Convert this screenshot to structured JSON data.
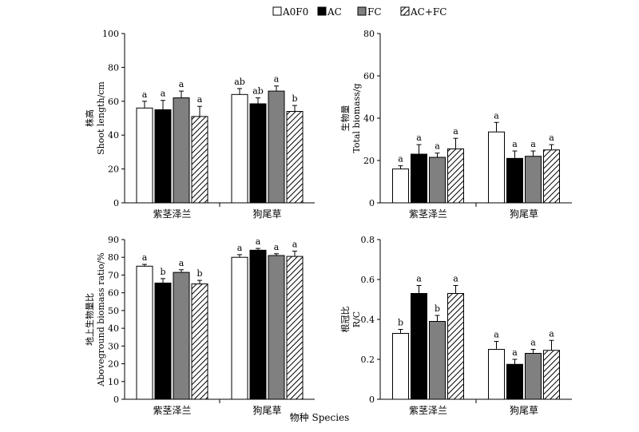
{
  "legend": {
    "items": [
      {
        "label": "A0F0",
        "fill": "white"
      },
      {
        "label": "AC",
        "fill": "black"
      },
      {
        "label": "FC",
        "fill": "gray"
      },
      {
        "label": "AC+FC",
        "fill": "hatch"
      }
    ]
  },
  "figure": {
    "xlabel": "物种 Species"
  },
  "colors": {
    "A0F0": "#ffffff",
    "AC": "#000000",
    "FC": "#808080",
    "AC+FC": "hatched"
  },
  "chart_data": [
    {
      "type": "bar",
      "ylabel_cn": "株高",
      "ylabel_en": "Shoot length/cm",
      "ylim": [
        0,
        100
      ],
      "yticks": [
        "0",
        "20",
        "40",
        "60",
        "80",
        "100"
      ],
      "categories": [
        "紫茎泽兰",
        "狗尾草"
      ],
      "series": [
        {
          "name": "A0F0",
          "values": [
            56,
            64
          ],
          "errors": [
            4,
            3.5
          ],
          "letters": [
            "a",
            "ab"
          ]
        },
        {
          "name": "AC",
          "values": [
            55,
            58.5
          ],
          "errors": [
            5.5,
            3.5
          ],
          "letters": [
            "a",
            "ab"
          ]
        },
        {
          "name": "FC",
          "values": [
            62,
            66
          ],
          "errors": [
            4,
            3
          ],
          "letters": [
            "a",
            "a"
          ]
        },
        {
          "name": "AC+FC",
          "values": [
            51,
            54
          ],
          "errors": [
            6,
            3.5
          ],
          "letters": [
            "a",
            "b"
          ]
        }
      ]
    },
    {
      "type": "bar",
      "ylabel_cn": "生物量",
      "ylabel_en": "Total biomass/g",
      "ylim": [
        0,
        80
      ],
      "yticks": [
        "0",
        "20",
        "40",
        "60",
        "80"
      ],
      "categories": [
        "紫茎泽兰",
        "狗尾草"
      ],
      "series": [
        {
          "name": "A0F0",
          "values": [
            16,
            33.5
          ],
          "errors": [
            1.5,
            4.5
          ],
          "letters": [
            "a",
            "a"
          ]
        },
        {
          "name": "AC",
          "values": [
            23,
            21
          ],
          "errors": [
            4.5,
            3.5
          ],
          "letters": [
            "a",
            "a"
          ]
        },
        {
          "name": "FC",
          "values": [
            21.5,
            22
          ],
          "errors": [
            2,
            2.5
          ],
          "letters": [
            "a",
            "a"
          ]
        },
        {
          "name": "AC+FC",
          "values": [
            25.5,
            25
          ],
          "errors": [
            5,
            2.5
          ],
          "letters": [
            "a",
            "a"
          ]
        }
      ]
    },
    {
      "type": "bar",
      "ylabel_cn": "地上生物量比",
      "ylabel_en": "Aboveground biomass ratio/%",
      "ylim": [
        0,
        90
      ],
      "yticks": [
        "0",
        "10",
        "20",
        "30",
        "40",
        "50",
        "60",
        "70",
        "80",
        "90"
      ],
      "categories": [
        "紫茎泽兰",
        "狗尾草"
      ],
      "series": [
        {
          "name": "A0F0",
          "values": [
            75,
            80
          ],
          "errors": [
            1,
            1.5
          ],
          "letters": [
            "a",
            "a"
          ]
        },
        {
          "name": "AC",
          "values": [
            65.5,
            84
          ],
          "errors": [
            2.5,
            1
          ],
          "letters": [
            "b",
            "a"
          ]
        },
        {
          "name": "FC",
          "values": [
            71.5,
            81
          ],
          "errors": [
            1.5,
            1
          ],
          "letters": [
            "a",
            "a"
          ]
        },
        {
          "name": "AC+FC",
          "values": [
            65,
            80.5
          ],
          "errors": [
            2,
            3
          ],
          "letters": [
            "b",
            "a"
          ]
        }
      ]
    },
    {
      "type": "bar",
      "ylabel_cn": "根冠比",
      "ylabel_en": "R/C",
      "ylim": [
        0,
        0.8
      ],
      "yticks": [
        "0",
        "0.2",
        "0.4",
        "0.6",
        "0.8"
      ],
      "categories": [
        "紫茎泽兰",
        "狗尾草"
      ],
      "series": [
        {
          "name": "A0F0",
          "values": [
            0.33,
            0.25
          ],
          "errors": [
            0.02,
            0.04
          ],
          "letters": [
            "b",
            "a"
          ]
        },
        {
          "name": "AC",
          "values": [
            0.53,
            0.175
          ],
          "errors": [
            0.04,
            0.025
          ],
          "letters": [
            "a",
            "a"
          ]
        },
        {
          "name": "FC",
          "values": [
            0.39,
            0.23
          ],
          "errors": [
            0.03,
            0.02
          ],
          "letters": [
            "b",
            "a"
          ]
        },
        {
          "name": "AC+FC",
          "values": [
            0.53,
            0.245
          ],
          "errors": [
            0.04,
            0.05
          ],
          "letters": [
            "a",
            "a"
          ]
        }
      ]
    }
  ]
}
